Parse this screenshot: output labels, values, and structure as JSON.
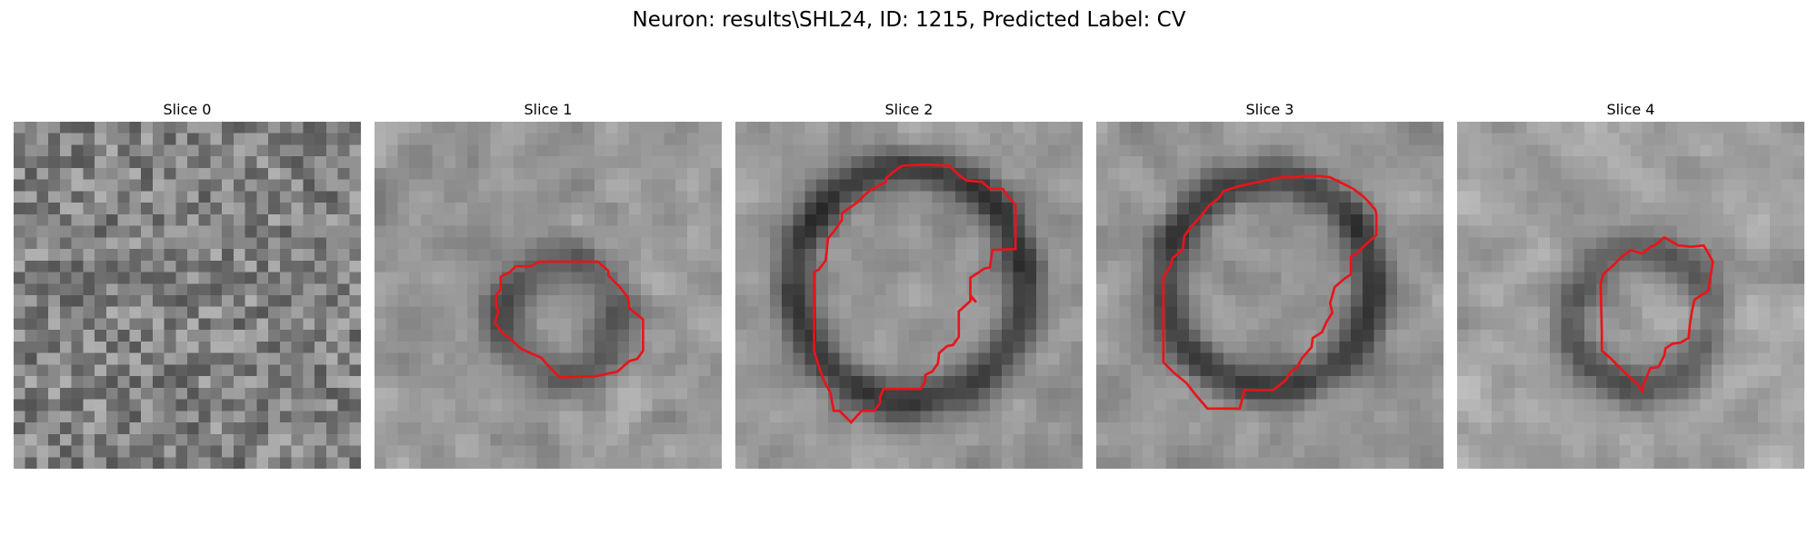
{
  "figure": {
    "title": "Neuron: results\\SHL24, ID: 1215, Predicted Label: CV"
  },
  "slices": [
    {
      "title": "Slice 0",
      "has_contour": false
    },
    {
      "title": "Slice 1",
      "has_contour": true
    },
    {
      "title": "Slice 2",
      "has_contour": true
    },
    {
      "title": "Slice 3",
      "has_contour": true
    },
    {
      "title": "Slice 4",
      "has_contour": true
    }
  ],
  "colors": {
    "contour": "#e8141a",
    "background": "#ffffff"
  }
}
